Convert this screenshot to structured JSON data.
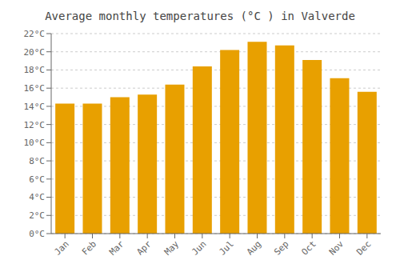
{
  "chart_data": {
    "type": "bar",
    "title": "Average monthly temperatures (°C ) in Valverde",
    "categories": [
      "Jan",
      "Feb",
      "Mar",
      "Apr",
      "May",
      "Jun",
      "Jul",
      "Aug",
      "Sep",
      "Oct",
      "Nov",
      "Dec"
    ],
    "values": [
      14.3,
      14.3,
      15.0,
      15.3,
      16.4,
      18.4,
      20.2,
      21.1,
      20.7,
      19.1,
      17.1,
      15.6
    ],
    "color": "#E8A000",
    "ylim": [
      0,
      22
    ],
    "yticks": [
      {
        "value": 0,
        "label": "0°C"
      },
      {
        "value": 2,
        "label": "2°C"
      },
      {
        "value": 4,
        "label": "4°C"
      },
      {
        "value": 6,
        "label": "6°C"
      },
      {
        "value": 8,
        "label": "8°C"
      },
      {
        "value": 10,
        "label": "10°C"
      },
      {
        "value": 12,
        "label": "12°C"
      },
      {
        "value": 14,
        "label": "14°C"
      },
      {
        "value": 16,
        "label": "16°C"
      },
      {
        "value": 18,
        "label": "18°C"
      },
      {
        "value": 20,
        "label": "20°C"
      },
      {
        "value": 22,
        "label": "22°C"
      }
    ],
    "grid": true
  }
}
